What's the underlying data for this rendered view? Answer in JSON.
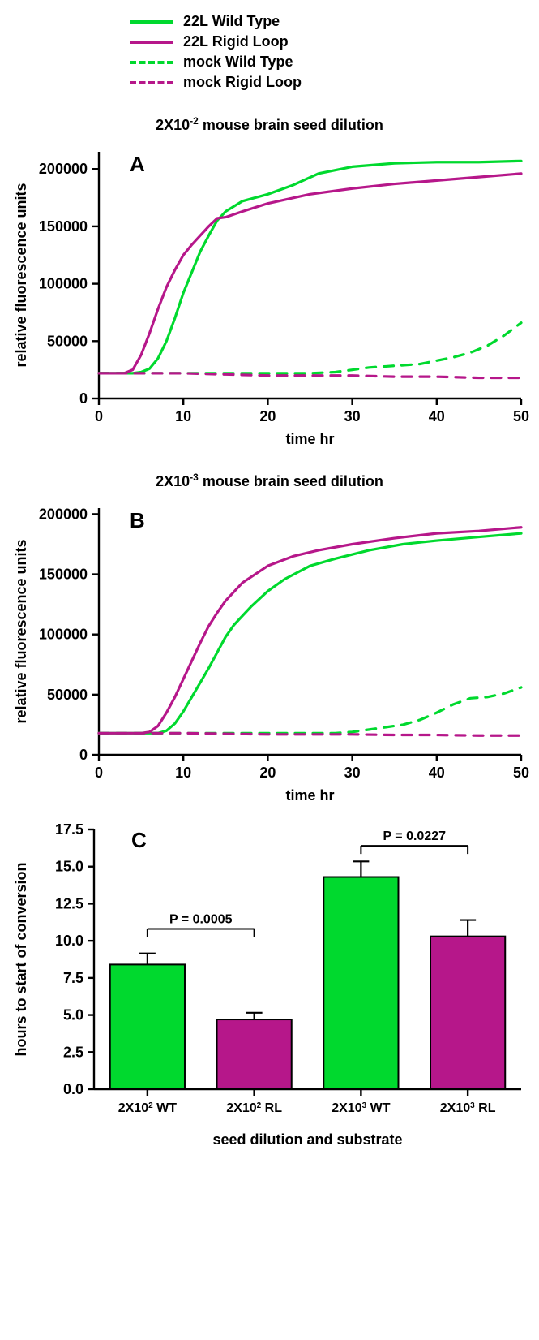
{
  "legend": {
    "items": [
      {
        "label": "22L Wild Type",
        "color": "#00d92e",
        "dash": "solid"
      },
      {
        "label": "22L Rigid Loop",
        "color": "#b6178a",
        "dash": "solid"
      },
      {
        "label": "mock Wild Type",
        "color": "#00d92e",
        "dash": "dashed"
      },
      {
        "label": "mock Rigid Loop",
        "color": "#b6178a",
        "dash": "dashed"
      }
    ]
  },
  "panelA": {
    "type": "line",
    "title_html": "2X10<sup>-2</sup> mouse brain seed dilution",
    "letter": "A",
    "xlabel": "time hr",
    "ylabel": "relative fluorescence units",
    "xlim": [
      0,
      50
    ],
    "ylim": [
      0,
      215000
    ],
    "xticks": [
      0,
      10,
      20,
      30,
      40,
      50
    ],
    "yticks": [
      0,
      50000,
      100000,
      150000,
      200000
    ],
    "ytick_labels": [
      "0",
      "50000",
      "100000",
      "150000",
      "200000"
    ],
    "line_width": 3.2,
    "series": [
      {
        "color": "#00d92e",
        "dash": "solid",
        "x": [
          0,
          2,
          4,
          5,
          6,
          7,
          8,
          9,
          10,
          11,
          12,
          13,
          14,
          15,
          17,
          20,
          23,
          26,
          30,
          35,
          40,
          45,
          50
        ],
        "y": [
          22000,
          22000,
          22000,
          23000,
          26000,
          35000,
          50000,
          70000,
          92000,
          110000,
          128000,
          142000,
          155000,
          163000,
          172000,
          178000,
          186000,
          196000,
          202000,
          205000,
          206000,
          206000,
          207000
        ]
      },
      {
        "color": "#b6178a",
        "dash": "solid",
        "x": [
          0,
          1,
          2,
          3,
          4,
          5,
          6,
          7,
          8,
          9,
          10,
          11,
          12,
          13,
          14,
          15,
          17,
          20,
          25,
          30,
          35,
          40,
          45,
          50
        ],
        "y": [
          22000,
          22000,
          22000,
          22000,
          25000,
          38000,
          57000,
          78000,
          97000,
          112000,
          125000,
          134000,
          142000,
          150000,
          157000,
          158000,
          163000,
          170000,
          178000,
          183000,
          187000,
          190000,
          193000,
          196000
        ]
      },
      {
        "color": "#00d92e",
        "dash": "dashed",
        "x": [
          0,
          5,
          10,
          15,
          20,
          25,
          28,
          30,
          32,
          34,
          36,
          38,
          40,
          42,
          44,
          46,
          48,
          50
        ],
        "y": [
          22000,
          22000,
          22000,
          22000,
          22000,
          22000,
          23000,
          25000,
          27000,
          28000,
          29000,
          30000,
          33000,
          36000,
          40000,
          46000,
          55000,
          66000
        ]
      },
      {
        "color": "#b6178a",
        "dash": "dashed",
        "x": [
          0,
          5,
          10,
          15,
          20,
          25,
          30,
          35,
          40,
          45,
          50
        ],
        "y": [
          22000,
          22000,
          22000,
          21000,
          20000,
          20000,
          20000,
          19000,
          19000,
          18000,
          18000
        ]
      }
    ]
  },
  "panelB": {
    "type": "line",
    "title_html": "2X10<sup>-3</sup> mouse brain seed dilution",
    "letter": "B",
    "xlabel": "time hr",
    "ylabel": "relative fluorescence units",
    "xlim": [
      0,
      50
    ],
    "ylim": [
      0,
      205000
    ],
    "xticks": [
      0,
      10,
      20,
      30,
      40,
      50
    ],
    "yticks": [
      0,
      50000,
      100000,
      150000,
      200000
    ],
    "ytick_labels": [
      "0",
      "50000",
      "100000",
      "150000",
      "200000"
    ],
    "line_width": 3.2,
    "series": [
      {
        "color": "#00d92e",
        "dash": "solid",
        "x": [
          0,
          3,
          5,
          6,
          7,
          8,
          9,
          10,
          11,
          12,
          13,
          14,
          15,
          16,
          18,
          20,
          22,
          25,
          28,
          32,
          36,
          40,
          45,
          50
        ],
        "y": [
          18000,
          18000,
          18000,
          18000,
          18000,
          20000,
          26000,
          36000,
          48000,
          60000,
          72000,
          85000,
          98000,
          108000,
          123000,
          136000,
          146000,
          157000,
          163000,
          170000,
          175000,
          178000,
          181000,
          184000
        ]
      },
      {
        "color": "#b6178a",
        "dash": "solid",
        "x": [
          0,
          3,
          5,
          6,
          7,
          8,
          9,
          10,
          11,
          12,
          13,
          14,
          15,
          17,
          20,
          23,
          26,
          30,
          35,
          40,
          45,
          50
        ],
        "y": [
          18000,
          18000,
          18000,
          19000,
          24000,
          35000,
          48000,
          63000,
          78000,
          93000,
          107000,
          118000,
          128000,
          143000,
          157000,
          165000,
          170000,
          175000,
          180000,
          184000,
          186000,
          189000
        ]
      },
      {
        "color": "#00d92e",
        "dash": "dashed",
        "x": [
          0,
          5,
          10,
          15,
          20,
          25,
          28,
          30,
          32,
          34,
          36,
          38,
          40,
          42,
          44,
          46,
          48,
          50
        ],
        "y": [
          18000,
          18000,
          18000,
          18000,
          18000,
          18000,
          18000,
          19000,
          21000,
          23000,
          25000,
          29000,
          35000,
          42000,
          47000,
          48000,
          51000,
          56000
        ]
      },
      {
        "color": "#b6178a",
        "dash": "dashed",
        "x": [
          0,
          5,
          10,
          15,
          20,
          25,
          30,
          35,
          40,
          45,
          50
        ],
        "y": [
          18000,
          18000,
          18000,
          17500,
          17000,
          17000,
          17000,
          16500,
          16500,
          16000,
          16000
        ]
      }
    ]
  },
  "panelC": {
    "type": "bar",
    "letter": "C",
    "xlabel": "seed dilution and substrate",
    "ylabel": "hours to start of conversion",
    "ylim": [
      0,
      17.5
    ],
    "yticks": [
      0.0,
      2.5,
      5.0,
      7.5,
      10.0,
      12.5,
      15.0,
      17.5
    ],
    "ytick_labels": [
      "0.0",
      "2.5",
      "5.0",
      "7.5",
      "10.0",
      "12.5",
      "15.0",
      "17.5"
    ],
    "bar_width": 0.7,
    "categories_html": [
      "2X10<tspan baseline-shift=\"super\" font-size=\"10\">2</tspan> WT",
      "2X10<tspan baseline-shift=\"super\" font-size=\"10\">2</tspan> RL",
      "2X10<tspan baseline-shift=\"super\" font-size=\"10\">3</tspan> WT",
      "2X10<tspan baseline-shift=\"super\" font-size=\"10\">3</tspan> RL"
    ],
    "bars": [
      {
        "value": 8.4,
        "err": 0.75,
        "color": "#00d92e"
      },
      {
        "value": 4.7,
        "err": 0.45,
        "color": "#b6178a"
      },
      {
        "value": 14.3,
        "err": 1.05,
        "color": "#00d92e"
      },
      {
        "value": 10.3,
        "err": 1.1,
        "color": "#b6178a"
      }
    ],
    "pvals": [
      {
        "label": "P = 0.0005",
        "between": [
          0,
          1
        ],
        "y": 10.8
      },
      {
        "label": "P = 0.0227",
        "between": [
          2,
          3
        ],
        "y": 16.4
      }
    ]
  },
  "style": {
    "axis_stroke": "#000000",
    "axis_width": 2.4,
    "tick_len": 8,
    "font_family": "Arial, Helvetica, sans-serif",
    "title_fontsize_pt": 14,
    "tick_fontsize_pt": 14
  }
}
